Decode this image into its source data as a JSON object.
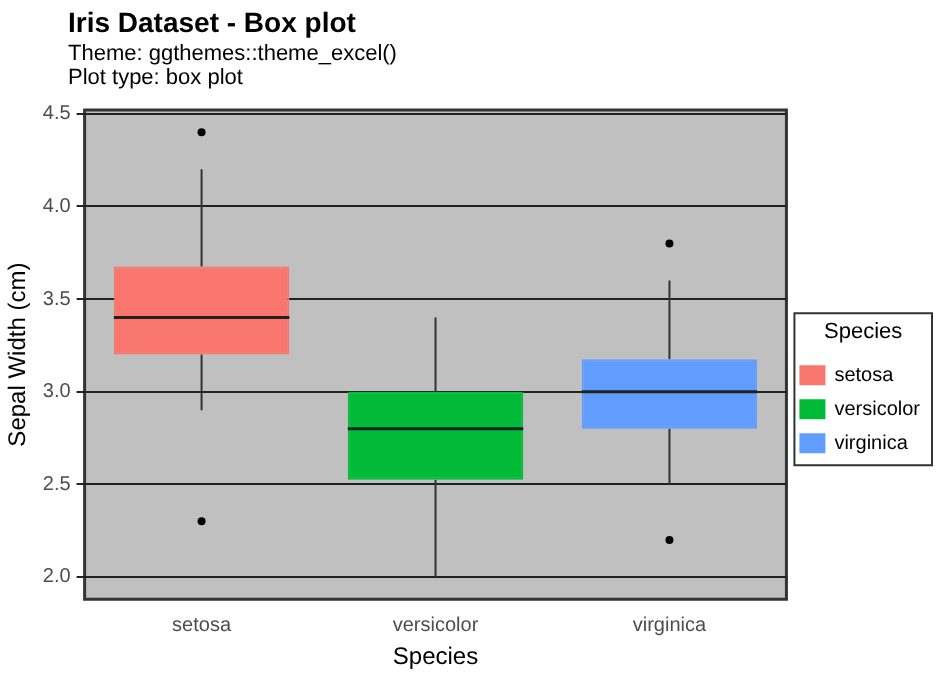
{
  "chart_data": {
    "type": "box",
    "title": "Iris Dataset - Box plot",
    "subtitle": "Theme: ggthemes::theme_excel()\nPlot type: box plot",
    "xlabel": "Species",
    "ylabel": "Sepal Width (cm)",
    "legend_title": "Species",
    "categories": [
      "setosa",
      "versicolor",
      "virginica"
    ],
    "series": [
      {
        "name": "setosa",
        "color": "#f8766d",
        "boxes": [
          {
            "low": 2.9,
            "q1": 3.2,
            "median": 3.4,
            "q3": 3.675,
            "high": 4.2,
            "outliers": [
              4.4,
              2.3
            ]
          },
          null,
          null
        ]
      },
      {
        "name": "versicolor",
        "color": "#00ba38",
        "boxes": [
          null,
          {
            "low": 2.0,
            "q1": 2.525,
            "median": 2.8,
            "q3": 3.0,
            "high": 3.4
          },
          null
        ]
      },
      {
        "name": "virginica",
        "color": "#619cff",
        "boxes": [
          null,
          null,
          {
            "low": 2.5,
            "q1": 2.8,
            "median": 3.0,
            "q3": 3.175,
            "high": 3.6,
            "outliers": [
              3.8,
              2.2
            ]
          }
        ]
      }
    ],
    "ylim": [
      1.88,
      4.52
    ],
    "yticks": [
      {
        "value": 2,
        "label": "2.0"
      },
      {
        "value": 2.5,
        "label": "2.5"
      },
      {
        "value": 3,
        "label": "3.0"
      },
      {
        "value": 3.5,
        "label": "3.5"
      },
      {
        "value": 4,
        "label": "4.0"
      },
      {
        "value": 4.5,
        "label": "4.5"
      }
    ],
    "grid": "y",
    "legend": "right"
  }
}
